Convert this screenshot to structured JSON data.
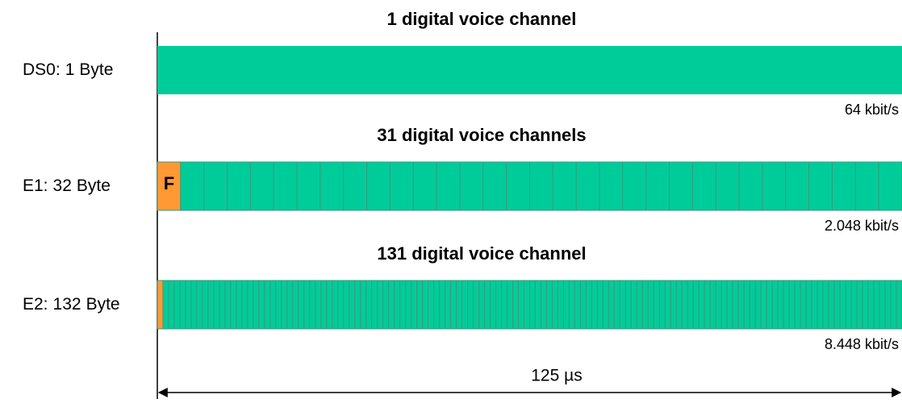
{
  "rows": [
    {
      "title": "1 digital voice channel",
      "name": "DS0:",
      "bytes": 1,
      "unit": "Byte",
      "rate": "64 kbit/s"
    },
    {
      "title": "31 digital voice channels",
      "name": "E1:",
      "bytes": 32,
      "unit": "Byte",
      "rate": "2.048 kbit/s",
      "frame_label": "F"
    },
    {
      "title": "131 digital voice channel",
      "name": "E2:",
      "bytes": 132,
      "unit": "Byte",
      "rate": "8.448 kbit/s"
    }
  ],
  "duration": "125 µs"
}
